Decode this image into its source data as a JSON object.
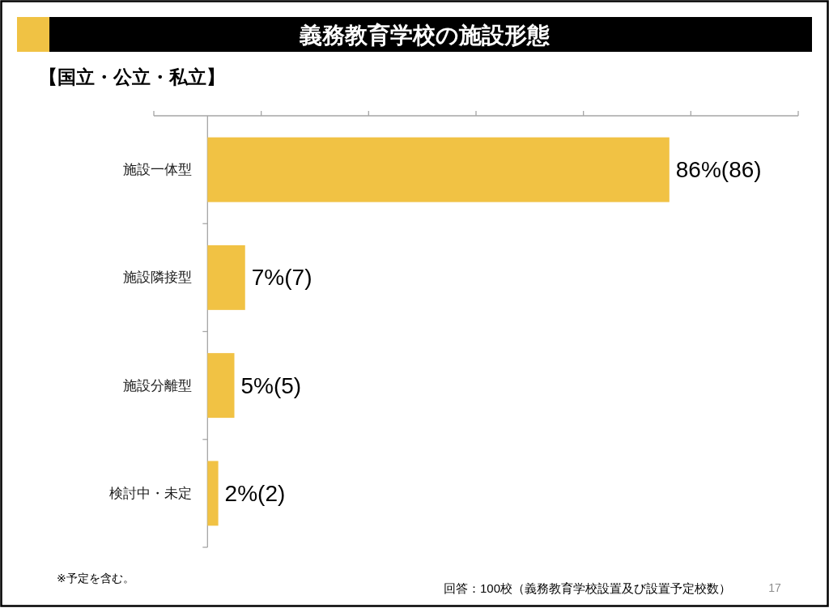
{
  "chart_data": {
    "type": "bar",
    "orientation": "horizontal",
    "title": "義務教育学校の施設形態",
    "subtitle": "【国立・公立・私立】",
    "categories": [
      "施設一体型",
      "施設隣接型",
      "施設分離型",
      "検討中・未定"
    ],
    "values": [
      86,
      7,
      5,
      2
    ],
    "color": "#f1c244",
    "value_labels": [
      "86%(86)",
      "7%(7)",
      "5%(5)",
      "2%(2)"
    ],
    "xlim": [
      -10,
      110
    ],
    "xticks": [
      {
        "value": -10,
        "label": null
      },
      {
        "value": 10,
        "label": null
      },
      {
        "value": 30,
        "label": null
      },
      {
        "value": 50,
        "label": null
      },
      {
        "value": 70,
        "label": null
      },
      {
        "value": 90,
        "label": null
      },
      {
        "value": 110,
        "label": null
      }
    ],
    "tick_labels": "y",
    "annotations": [
      "※予定を含む。",
      "回答：100校（義務教育学校設置及び設置予定校数）",
      "17"
    ]
  }
}
